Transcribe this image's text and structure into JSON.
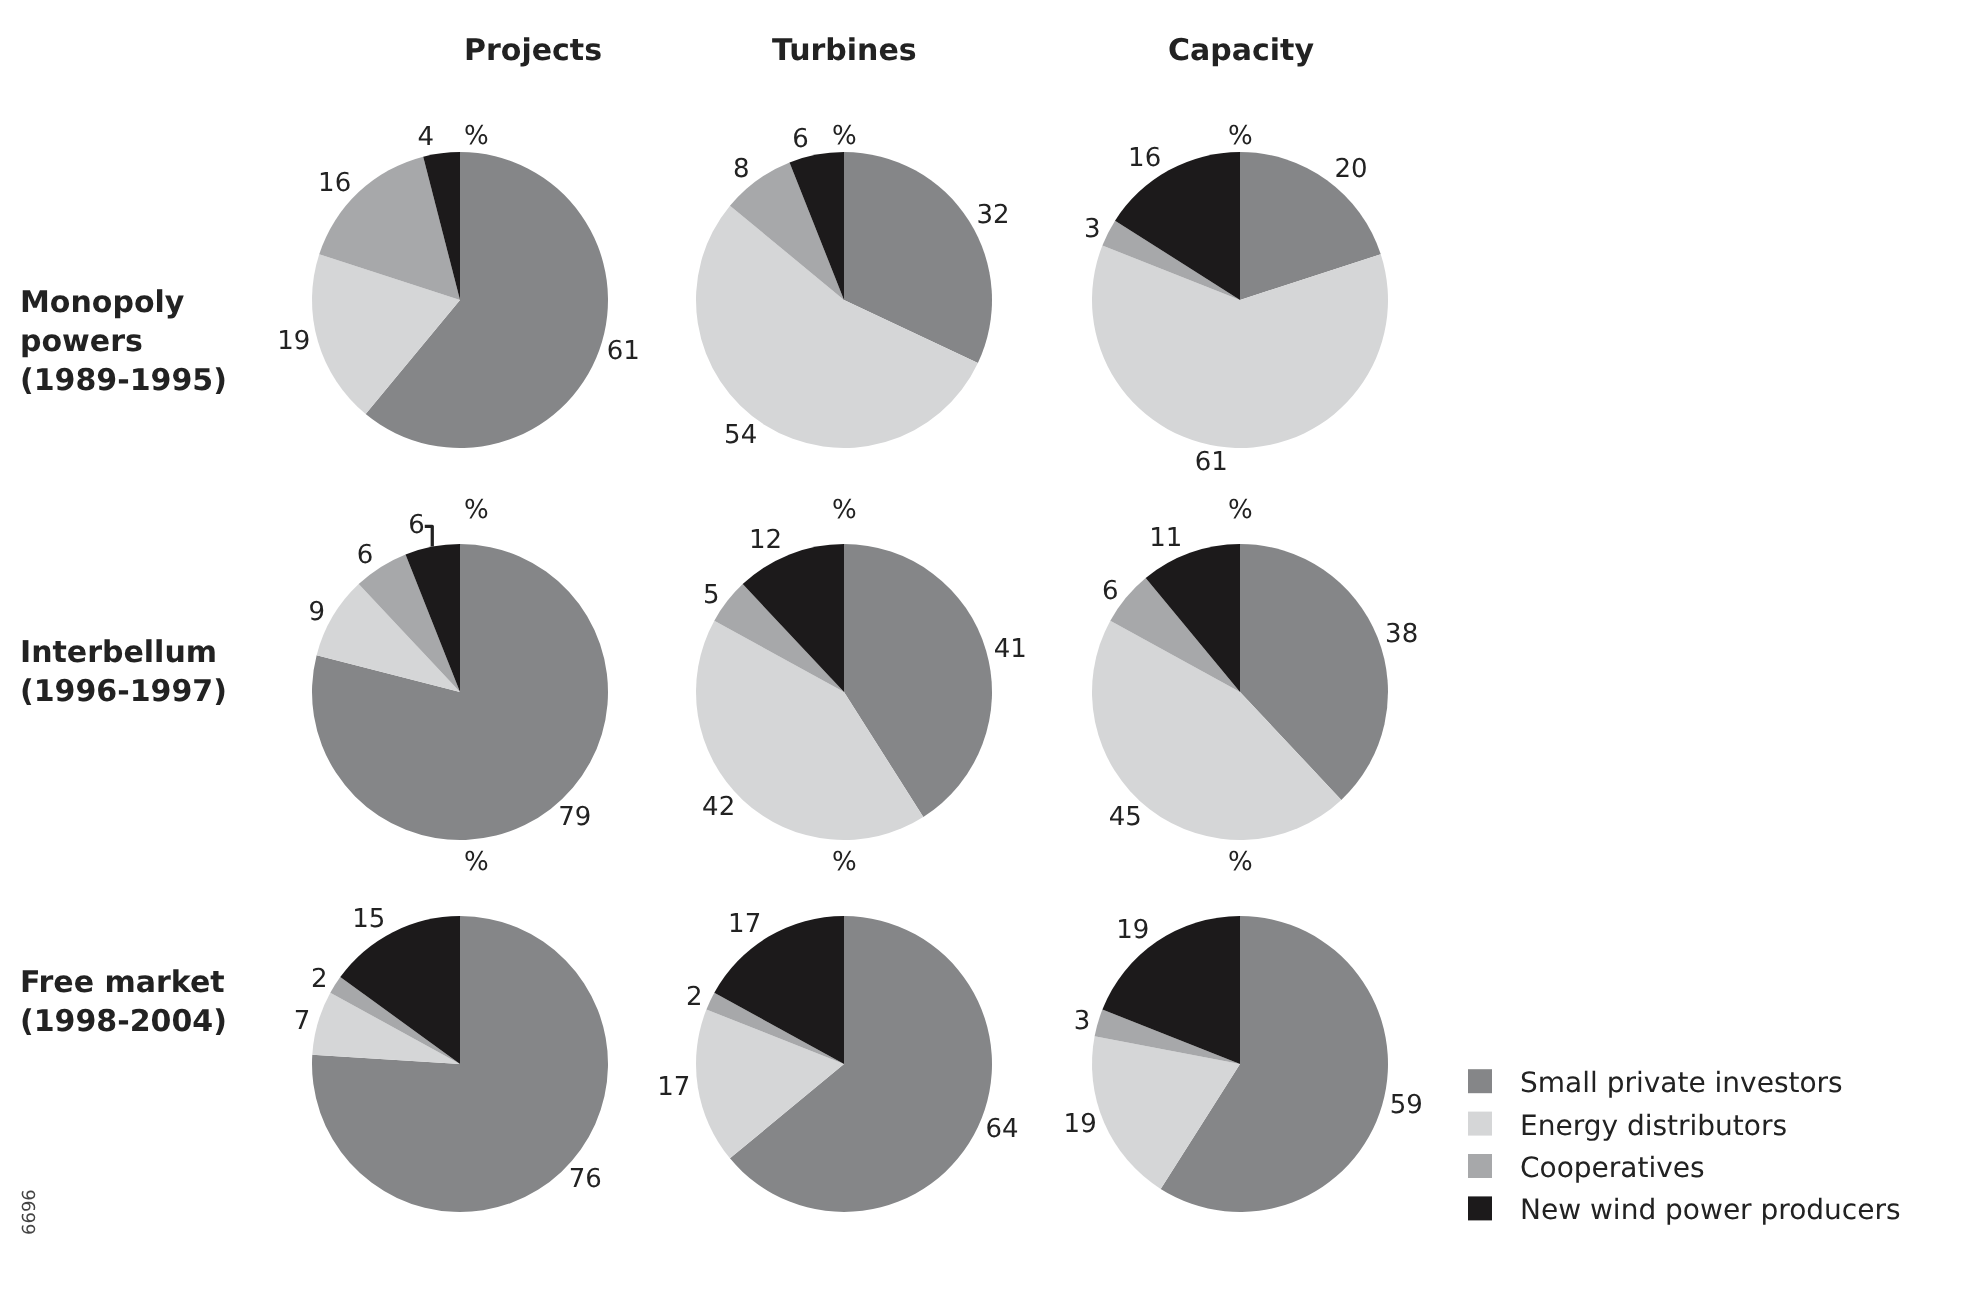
{
  "chart_data": [
    {
      "type": "pie",
      "title": "Projects",
      "subtitle": "%",
      "ylabel": "Monopoly\npowers\n(1989-1995)",
      "categories": [
        "Small private investors",
        "Energy distributors",
        "Cooperatives",
        "New wind power producers"
      ],
      "legend": "bottom right",
      "values": [
        61,
        19,
        16,
        4
      ],
      "colors": [
        "#858688",
        "#d5d6d7",
        "#a7a8aa",
        "#1c1a1b"
      ],
      "data_labels": true
    },
    {
      "type": "pie",
      "title": "Turbines",
      "subtitle": "%",
      "categories": [
        null,
        null,
        null,
        null
      ],
      "values": [
        32,
        54,
        8,
        6
      ],
      "colors": [
        "#858688",
        "#d5d6d7",
        "#a7a8aa",
        "#1c1a1b"
      ],
      "data_labels": true
    },
    {
      "type": "pie",
      "title": "Capacity",
      "subtitle": "%",
      "categories": [
        null,
        null,
        null,
        null
      ],
      "values": [
        20,
        61,
        3,
        16
      ],
      "colors": [
        "#858688",
        "#d5d6d7",
        "#a7a8aa",
        "#1c1a1b"
      ],
      "data_labels": true
    },
    {
      "type": "pie",
      "subtitle": "%",
      "ylabel": "Interbellum\n(1996-1997)",
      "categories": [
        null,
        null,
        null,
        null
      ],
      "values": [
        79,
        9,
        6,
        6
      ],
      "colors": [
        "#858688",
        "#d5d6d7",
        "#a7a8aa",
        "#1c1a1b"
      ],
      "data_labels": true
    },
    {
      "type": "pie",
      "subtitle": "%",
      "categories": [
        null,
        null,
        null,
        null
      ],
      "values": [
        41,
        42,
        5,
        12
      ],
      "colors": [
        "#858688",
        "#d5d6d7",
        "#a7a8aa",
        "#1c1a1b"
      ],
      "data_labels": true
    },
    {
      "type": "pie",
      "subtitle": "%",
      "categories": [
        null,
        null,
        null,
        null
      ],
      "values": [
        38,
        45,
        6,
        11
      ],
      "colors": [
        "#858688",
        "#d5d6d7",
        "#a7a8aa",
        "#1c1a1b"
      ],
      "data_labels": true
    },
    {
      "type": "pie",
      "subtitle": "%",
      "ylabel": "Free market\n(1998-2004)",
      "annotations": [
        "6696"
      ],
      "categories": [
        null,
        null,
        null,
        null
      ],
      "values": [
        76,
        7,
        2,
        15
      ],
      "colors": [
        "#858688",
        "#d5d6d7",
        "#a7a8aa",
        "#1c1a1b"
      ],
      "data_labels": true
    },
    {
      "type": "pie",
      "subtitle": "%",
      "categories": [
        null,
        null,
        null,
        null
      ],
      "values": [
        64,
        17,
        2,
        17
      ],
      "colors": [
        "#858688",
        "#d5d6d7",
        "#a7a8aa",
        "#1c1a1b"
      ],
      "data_labels": true
    },
    {
      "type": "pie",
      "subtitle": "%",
      "categories": [
        null,
        null,
        null,
        null
      ],
      "values": [
        59,
        19,
        3,
        19
      ],
      "colors": [
        "#858688",
        "#d5d6d7",
        "#a7a8aa",
        "#1c1a1b"
      ],
      "data_labels": true
    }
  ]
}
